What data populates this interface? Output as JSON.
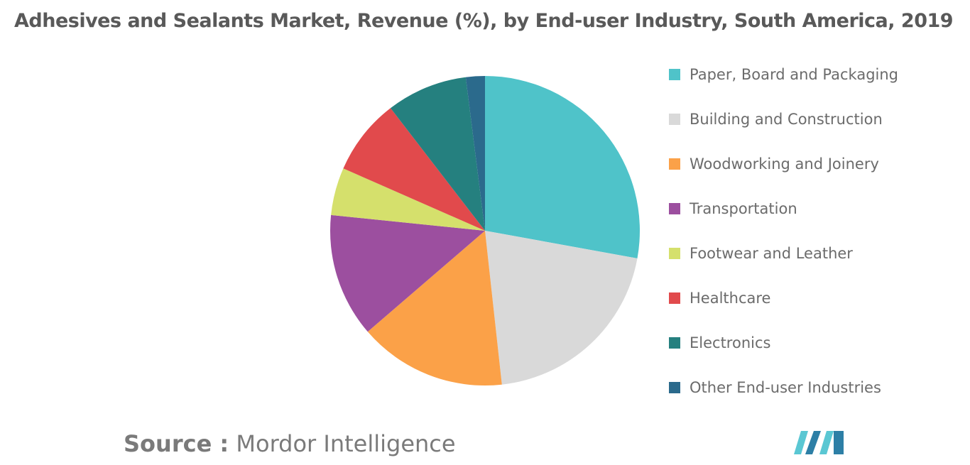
{
  "title": "Adhesives and Sealants Market, Revenue (%), by End-user Industry, South America, 2019",
  "chart_data": {
    "type": "pie",
    "title": "Adhesives and Sealants Market, Revenue (%), by End-user Industry, South America, 2019",
    "legend_position": "right",
    "slices": [
      {
        "label": "Paper, Board and Packaging",
        "value": 28,
        "color": "#4fc3c9"
      },
      {
        "label": "Building and Construction",
        "value": 20.5,
        "color": "#d9d9d9"
      },
      {
        "label": "Woodworking and Joinery",
        "value": 15.5,
        "color": "#fba148"
      },
      {
        "label": "Transportation",
        "value": 13,
        "color": "#9c4f9f"
      },
      {
        "label": "Footwear and Leather",
        "value": 5,
        "color": "#d5e06c"
      },
      {
        "label": "Healthcare",
        "value": 8,
        "color": "#e14a4c"
      },
      {
        "label": "Electronics",
        "value": 8.5,
        "color": "#25807f"
      },
      {
        "label": "Other End-user Industries",
        "value": 2,
        "color": "#2b6a8c"
      }
    ]
  },
  "source": {
    "prefix": "Source :",
    "name": "Mordor Intelligence"
  },
  "logo": {
    "icon": "mordor-intelligence-logo",
    "colors": [
      "#5ac7d3",
      "#2d7fa6"
    ]
  }
}
